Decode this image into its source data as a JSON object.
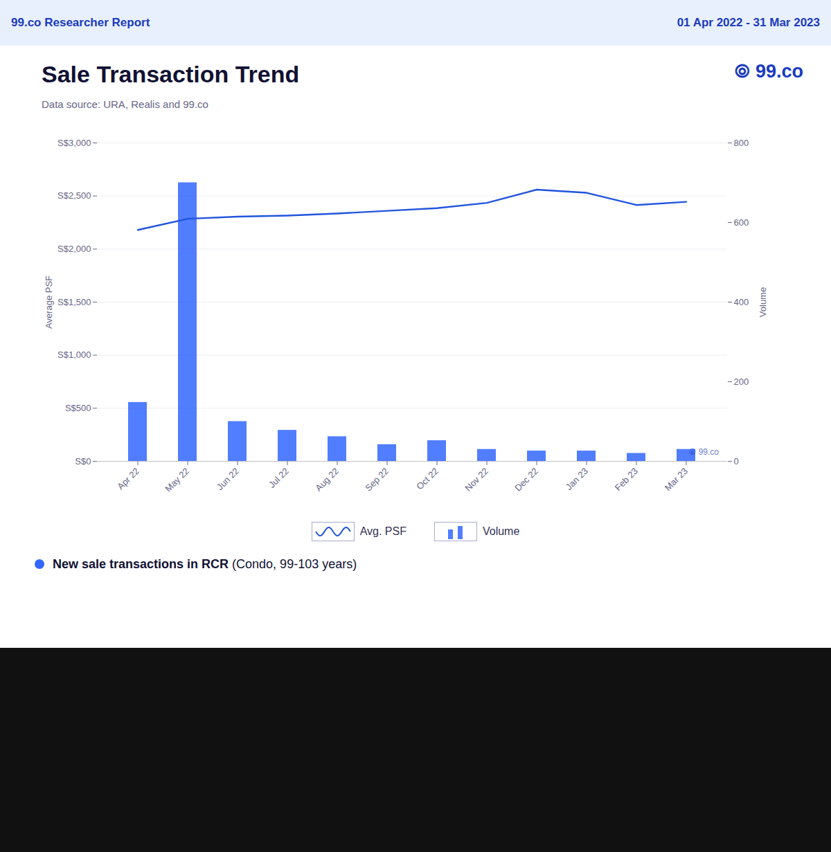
{
  "chart_data": {
    "type": "bar",
    "title": "Sale Transaction Trend",
    "subtitle": "Data source: URA, Realis and 99.co",
    "annotations": [
      "99.co Researcher Report",
      "01 Apr 2022 - 31 Mar 2023",
      "⦾ 99.co",
      "⦾ 99.co",
      "New sale transactions in RCR",
      " (Condo, 99-103 years)"
    ],
    "categories": [
      "Apr 22",
      "May 22",
      "Jun 22",
      "Jul 22",
      "Aug 22",
      "Sep 22",
      "Oct 22",
      "Nov 22",
      "Dec 22",
      "Jan 23",
      "Feb 23",
      "Mar 23"
    ],
    "series": [
      {
        "name": "Avg. PSF",
        "type": "line",
        "color": "#2255dd",
        "values": [
          2180,
          2285,
          2305,
          2315,
          2335,
          2360,
          2385,
          2435,
          2560,
          2530,
          2415,
          2445
        ]
      },
      {
        "name": "Volume",
        "type": "bar",
        "color": "#3366ff",
        "axis": "y2",
        "values": [
          148,
          700,
          100,
          78,
          62,
          42,
          52,
          30,
          26,
          26,
          20,
          30
        ]
      }
    ],
    "ylabel": "Average PSF",
    "y2label": "Volume",
    "ylim": [
      0,
      3000
    ],
    "yticks": [
      {
        "value": 0,
        "label": "S$0"
      },
      {
        "value": 500,
        "label": "S$500"
      },
      {
        "value": 1000,
        "label": "S$1,000"
      },
      {
        "value": 1500,
        "label": "S$1,500"
      },
      {
        "value": 2000,
        "label": "S$2,000"
      },
      {
        "value": 2500,
        "label": "S$2,500"
      },
      {
        "value": 3000,
        "label": "S$3,000"
      }
    ],
    "y2lim": [
      0,
      800
    ],
    "y2ticks": [
      0,
      200,
      400,
      600,
      800
    ],
    "grid": true,
    "legend": "bottom"
  }
}
